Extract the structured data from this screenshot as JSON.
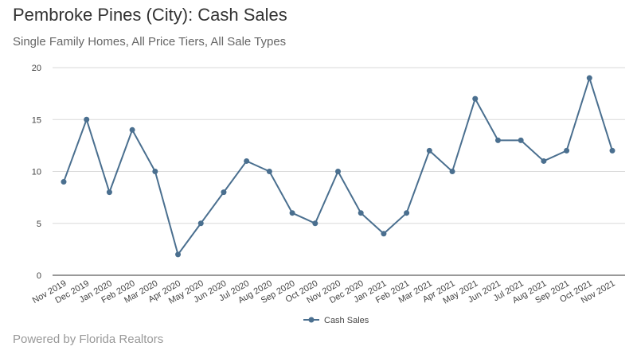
{
  "chart_data": {
    "type": "line",
    "title": "Pembroke Pines (City): Cash Sales",
    "subtitle": "Single Family Homes, All Price Tiers, All Sale Types",
    "categories": [
      "Nov 2019",
      "Dec 2019",
      "Jan 2020",
      "Feb 2020",
      "Mar 2020",
      "Apr 2020",
      "May 2020",
      "Jun 2020",
      "Jul 2020",
      "Aug 2020",
      "Sep 2020",
      "Oct 2020",
      "Nov 2020",
      "Dec 2020",
      "Jan 2021",
      "Feb 2021",
      "Mar 2021",
      "Apr 2021",
      "May 2021",
      "Jun 2021",
      "Jul 2021",
      "Aug 2021",
      "Sep 2021",
      "Oct 2021",
      "Nov 2021"
    ],
    "series": [
      {
        "name": "Cash Sales",
        "color": "#4a6f8f",
        "values": [
          9,
          15,
          8,
          14,
          10,
          2,
          5,
          8,
          11,
          10,
          6,
          5,
          10,
          6,
          4,
          6,
          12,
          10,
          17,
          13,
          13,
          11,
          12,
          19,
          12
        ]
      }
    ],
    "ylim": [
      0,
      20
    ],
    "yticks": [
      0,
      5,
      10,
      15,
      20
    ],
    "grid": true,
    "legend": "bottom"
  },
  "credit": "Powered by Florida Realtors"
}
